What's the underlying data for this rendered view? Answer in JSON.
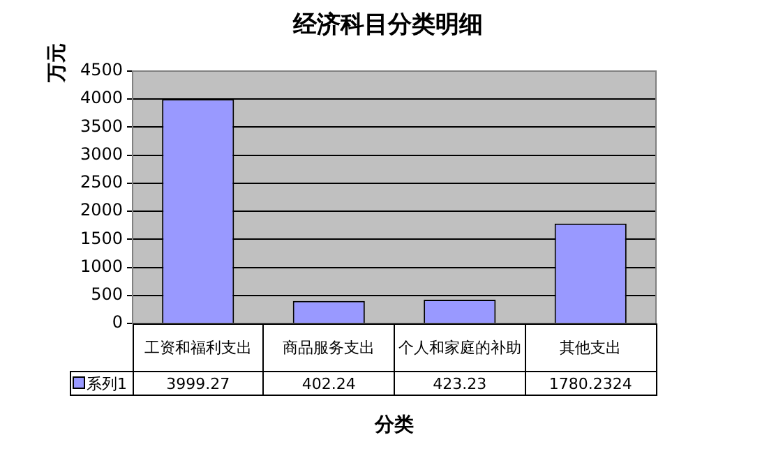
{
  "chart_data": {
    "type": "bar",
    "title": "经济科目分类明细",
    "xlabel": "分类",
    "ylabel": "万元",
    "categories": [
      "工资和福利支出",
      "商品服务支出",
      "个人和家庭的补助",
      "其他支出"
    ],
    "series": [
      {
        "name": "系列1",
        "color": "#9999ff",
        "values": [
          3999.27,
          402.24,
          423.23,
          1780.2324
        ]
      }
    ],
    "ylim": [
      0,
      4500
    ],
    "yticks": [
      0,
      500,
      1000,
      1500,
      2000,
      2500,
      3000,
      3500,
      4000,
      4500
    ],
    "grid": "y",
    "legend": "bottom",
    "data_labels": true
  }
}
